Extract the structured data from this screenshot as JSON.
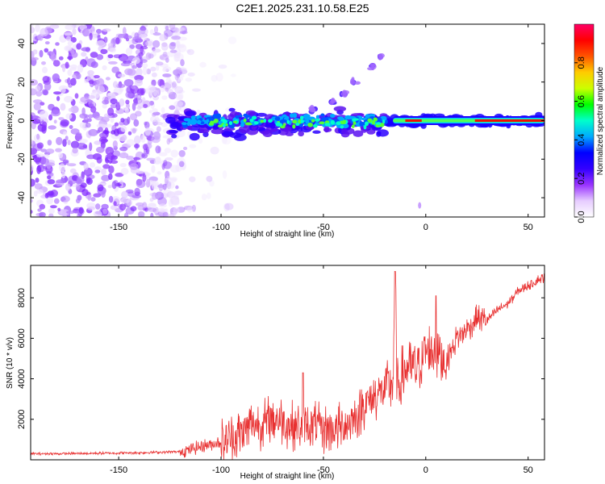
{
  "title": "C2E1.2025.231.10.58.E25",
  "chart_data": [
    {
      "type": "heatmap",
      "xlabel": "Height of straight line (km)",
      "ylabel": "Frequency (Hz)",
      "xlim": [
        -193,
        58
      ],
      "ylim": [
        -50,
        50
      ],
      "xticks": [
        -150,
        -100,
        -50,
        0,
        50
      ],
      "yticks": [
        -40,
        -20,
        0,
        20,
        40
      ],
      "colorbar": {
        "label": "Normalized spectral amplitude",
        "range": [
          0.0,
          1.0
        ],
        "ticks": [
          "0.0",
          "0.2",
          "0.4",
          "0.6",
          "0.8"
        ],
        "colors": [
          "#ffffff",
          "#e6ccff",
          "#9933ff",
          "#3300ff",
          "#0000ff",
          "#00aaff",
          "#00ffcc",
          "#00ff00",
          "#ccff00",
          "#ffcc00",
          "#ff5500",
          "#ff0000",
          "#ff0066"
        ]
      },
      "features": [
        {
          "name": "noise",
          "x_range": [
            -193,
            -118
          ],
          "y_range": [
            -50,
            50
          ]
        },
        {
          "name": "main-band",
          "x_range": [
            -125,
            58
          ],
          "center_hz": 0
        },
        {
          "name": "rising-branch",
          "points": [
            [
              -55,
              6
            ],
            [
              -45,
              10
            ],
            [
              -40,
              14
            ],
            [
              -35,
              20
            ],
            [
              -26,
              28
            ],
            [
              -22,
              33
            ]
          ]
        }
      ]
    },
    {
      "type": "line",
      "xlabel": "Height of straight line (km)",
      "ylabel": "SNR (10 * v/v)",
      "xlim": [
        -193,
        58
      ],
      "ylim": [
        0,
        9600
      ],
      "xticks": [
        -150,
        -100,
        -50,
        0,
        50
      ],
      "yticks": [
        2000,
        4000,
        6000,
        8000
      ],
      "color": "#e83030",
      "series": [
        {
          "x": [
            -193,
            -180,
            -160,
            -140,
            -120,
            -110,
            -100,
            -90,
            -85,
            -80,
            -75,
            -70,
            -65,
            -60,
            -55,
            -50,
            -45,
            -40,
            -35,
            -30,
            -25,
            -20,
            -16,
            -15,
            -14,
            -10,
            -5,
            0,
            5,
            10,
            15,
            20,
            25,
            30,
            35,
            40,
            45,
            50,
            55,
            58
          ],
          "y": [
            300,
            300,
            320,
            350,
            400,
            650,
            900,
            1300,
            1800,
            1700,
            2100,
            1900,
            1700,
            1600,
            1700,
            1500,
            1500,
            1700,
            2000,
            2700,
            3100,
            3500,
            3900,
            9300,
            3500,
            4500,
            4500,
            5300,
            5400,
            4800,
            6000,
            6400,
            7000,
            6900,
            7400,
            7700,
            8300,
            8600,
            8900,
            9000
          ]
        }
      ]
    }
  ]
}
